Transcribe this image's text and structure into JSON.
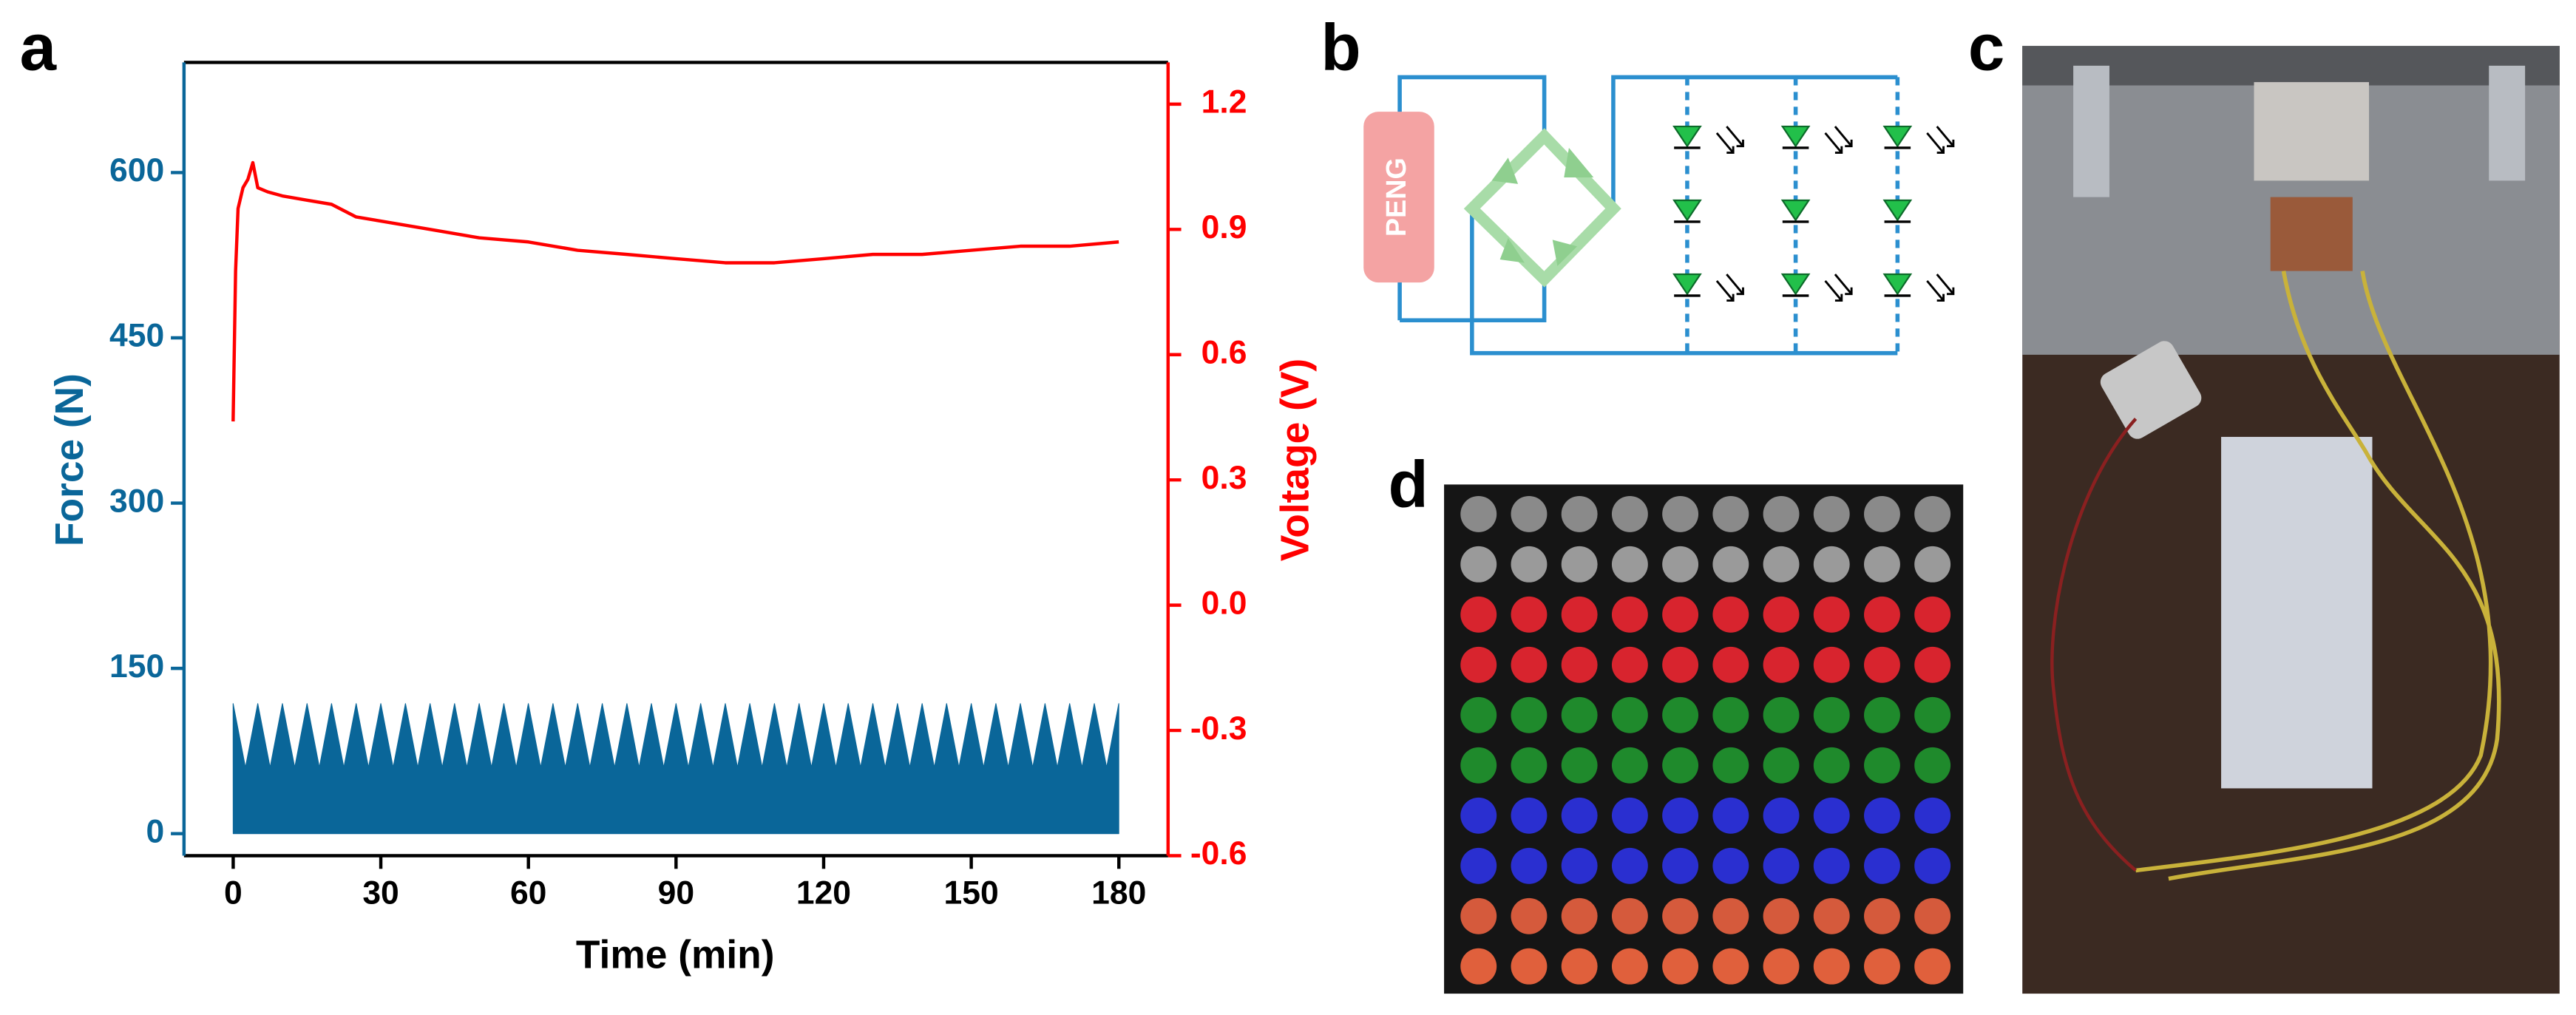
{
  "panel_labels": [
    "a",
    "b",
    "c",
    "d"
  ],
  "diagram": {
    "source_label": "PENG"
  },
  "chart_data": {
    "type": "line",
    "xlabel": "Time (min)",
    "ylabel": "Force (N)",
    "y2label": "Voltage (V)",
    "xlim": [
      -10,
      190
    ],
    "xticks": [
      0,
      30,
      60,
      90,
      120,
      150,
      180
    ],
    "ylim": [
      -20,
      700
    ],
    "yticks": [
      0,
      150,
      300,
      450,
      600
    ],
    "y2lim": [
      -0.6,
      1.3
    ],
    "y2ticks": [
      -0.6,
      -0.3,
      {
        "value": 0,
        "label": "0.0"
      },
      0.3,
      0.6,
      0.9,
      1.2
    ],
    "series": [
      {
        "name": "Force",
        "color": "#0a6699",
        "fill": true,
        "x": [
          0,
          2.5,
          5,
          7.5,
          10,
          12.5,
          15,
          17.5,
          20,
          22.5,
          25,
          27.5,
          30,
          32.5,
          35,
          37.5,
          40,
          42.5,
          45,
          47.5,
          50,
          52.5,
          55,
          57.5,
          60,
          62.5,
          65,
          67.5,
          70,
          72.5,
          75,
          77.5,
          80,
          82.5,
          85,
          87.5,
          90,
          92.5,
          95,
          97.5,
          100,
          102.5,
          105,
          107.5,
          110,
          112.5,
          115,
          117.5,
          120,
          122.5,
          125,
          127.5,
          130,
          132.5,
          135,
          137.5,
          140,
          142.5,
          145,
          147.5,
          150,
          152.5,
          155,
          157.5,
          160,
          162.5,
          165,
          167.5,
          170,
          172.5,
          175,
          177.5,
          180
        ],
        "values": [
          118,
          60,
          118,
          60,
          118,
          60,
          118,
          60,
          118,
          60,
          118,
          60,
          118,
          60,
          118,
          60,
          118,
          60,
          118,
          60,
          118,
          60,
          118,
          60,
          118,
          60,
          118,
          60,
          118,
          60,
          118,
          60,
          118,
          60,
          118,
          60,
          118,
          60,
          118,
          60,
          118,
          60,
          118,
          60,
          118,
          60,
          118,
          60,
          118,
          60,
          118,
          60,
          118,
          60,
          118,
          60,
          118,
          60,
          118,
          60,
          118,
          60,
          118,
          60,
          118,
          60,
          118,
          60,
          118,
          60,
          118,
          60,
          118
        ]
      },
      {
        "name": "Voltage",
        "color": "#ff0000",
        "axis": "y2",
        "fill": false,
        "x": [
          0,
          0.5,
          1,
          2,
          3,
          4,
          5,
          7,
          10,
          15,
          20,
          25,
          30,
          40,
          50,
          60,
          70,
          80,
          90,
          100,
          110,
          120,
          130,
          140,
          150,
          160,
          170,
          180
        ],
        "values": [
          0.44,
          0.8,
          0.95,
          1.0,
          1.02,
          1.06,
          1.0,
          0.99,
          0.98,
          0.97,
          0.96,
          0.93,
          0.92,
          0.9,
          0.88,
          0.87,
          0.85,
          0.84,
          0.83,
          0.82,
          0.82,
          0.83,
          0.84,
          0.84,
          0.85,
          0.86,
          0.86,
          0.87
        ]
      }
    ]
  }
}
